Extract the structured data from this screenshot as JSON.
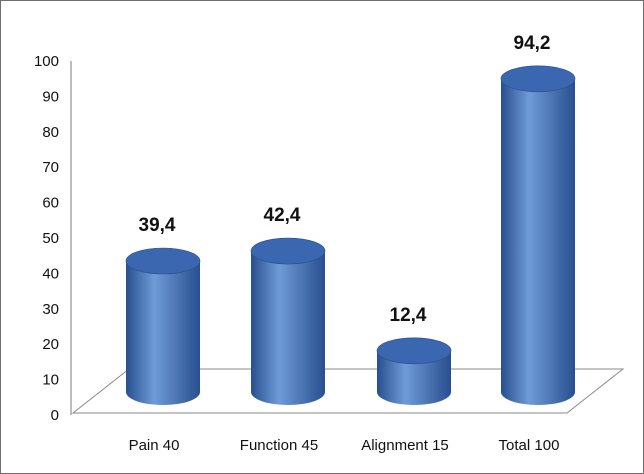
{
  "chart_data": {
    "type": "bar",
    "style": "3d-cylinder",
    "categories": [
      "Pain 40",
      "Function 45",
      "Alignment 15",
      "Total 100"
    ],
    "values": [
      39.4,
      42.4,
      12.4,
      94.2
    ],
    "data_labels": [
      "39,4",
      "42,4",
      "12,4",
      "94,2"
    ],
    "y_ticks": [
      "0",
      "10",
      "20",
      "30",
      "40",
      "50",
      "60",
      "70",
      "80",
      "90",
      "100"
    ],
    "ylim": [
      0,
      100
    ],
    "grid": false,
    "legend": "none",
    "colors": {
      "bar_light": "#6f9bd8",
      "bar_mid": "#4a78c0",
      "bar_dark": "#284f8f",
      "bar_top": "#3b67b0",
      "floor_line": "#8a8a8a",
      "axis": "#7a7a7a"
    }
  }
}
